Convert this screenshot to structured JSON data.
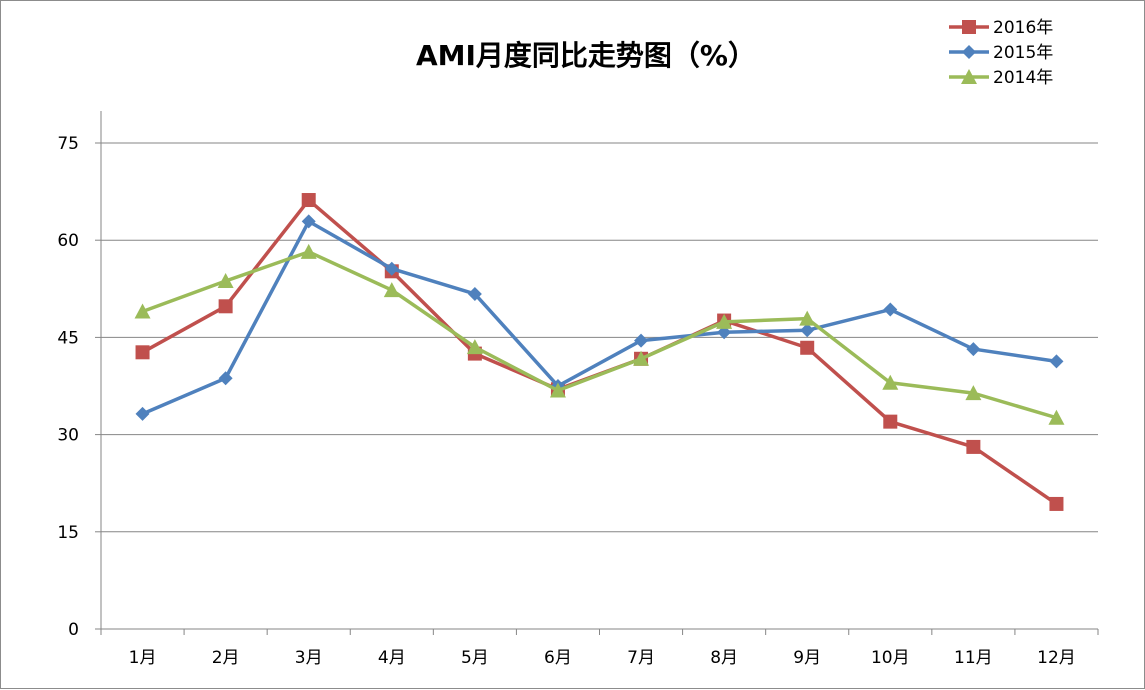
{
  "chart_data": {
    "type": "line",
    "title": "AMI月度同比走势图（%）",
    "xlabel": "",
    "ylabel": "",
    "categories": [
      "1月",
      "2月",
      "3月",
      "4月",
      "5月",
      "6月",
      "7月",
      "8月",
      "9月",
      "10月",
      "11月",
      "12月"
    ],
    "ylim": [
      0,
      75
    ],
    "yticks": [
      0,
      15,
      30,
      45,
      60,
      75
    ],
    "grid": true,
    "legend_position": "top-right",
    "series": [
      {
        "name": "2016年",
        "color": "#c0504d",
        "marker": "square",
        "values": [
          42.7,
          49.8,
          66.2,
          55.2,
          42.5,
          37.0,
          41.7,
          47.6,
          43.4,
          32.0,
          28.1,
          19.3
        ]
      },
      {
        "name": "2015年",
        "color": "#4f81bd",
        "marker": "diamond",
        "values": [
          33.2,
          38.7,
          62.9,
          55.6,
          51.7,
          37.5,
          44.5,
          45.8,
          46.1,
          49.3,
          43.2,
          41.3
        ]
      },
      {
        "name": "2014年",
        "color": "#9bbb59",
        "marker": "triangle",
        "values": [
          49.0,
          53.7,
          58.2,
          52.3,
          43.5,
          36.8,
          41.7,
          47.4,
          47.9,
          38.0,
          36.4,
          32.6
        ]
      }
    ]
  }
}
